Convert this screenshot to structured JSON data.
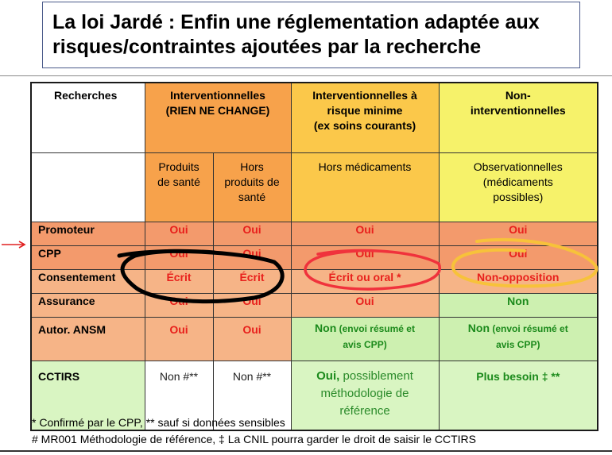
{
  "title": {
    "line1": "La loi Jardé : Enfin une réglementation adaptée aux",
    "line2": "risques/contraintes ajoutées par la recherche"
  },
  "table": {
    "corner": "Recherches",
    "col1_header_l1": "Interventionnelles",
    "col1_header_l2": "(RIEN NE CHANGE)",
    "col1a_l1": "Produits",
    "col1a_l2": "de santé",
    "col1b_l1": "Hors",
    "col1b_l2": "produits de",
    "col1b_l3": "santé",
    "col2_header_l1": "Interventionnelles à",
    "col2_header_l2": "risque minime",
    "col2_header_l3": "(ex soins courants)",
    "col2_sub": "Hors médicaments",
    "col3_header_l1": "Non-",
    "col3_header_l2": "interventionnelles",
    "col3_sub_l1": "Observationnelles",
    "col3_sub_l2": "(médicaments",
    "col3_sub_l3": "possibles)",
    "rows": {
      "promoteur": {
        "label": "Promoteur",
        "c1a": "Oui",
        "c1b": "Oui",
        "c2": "Oui",
        "c3": "Oui"
      },
      "cpp": {
        "label": "CPP",
        "c1a": "Oui",
        "c1b": "Oui",
        "c2": "Oui",
        "c3": "Oui"
      },
      "consentement": {
        "label": "Consentement",
        "c1a": "Écrit",
        "c1b": "Écrit",
        "c2": "Écrit ou oral *",
        "c3": "Non-opposition"
      },
      "assurance": {
        "label": "Assurance",
        "c1a": "Oui",
        "c1b": "Oui",
        "c2": "Oui",
        "c3": "Non"
      },
      "ansm": {
        "label": "Autor. ANSM",
        "c1a": "Oui",
        "c1b": "Oui",
        "c2_main": "Non",
        "c2_note_a": " (envoi résumé et",
        "c2_note_b": "avis CPP)",
        "c3_main": "Non",
        "c3_note_a": " (envoi résumé et",
        "c3_note_b": "avis CPP)"
      },
      "cctirs": {
        "label": "CCTIRS",
        "c1a": "Non #**",
        "c1b": "Non #**",
        "c2_main": "Oui,",
        "c2_rest_a": " possiblement",
        "c2_rest_b": "méthodologie de",
        "c2_rest_c": "référence",
        "c3": "Plus besoin ‡ **"
      }
    }
  },
  "notes": {
    "line1": "* Confirmé par le CPP, ** sauf si données sensibles",
    "line2": "# MR001 Méthodologie de référence, ‡ La CNIL pourra garder le droit de saisir le CCTIRS"
  },
  "colors": {
    "orange": "#f7a24b",
    "yellow": "#f6f26a",
    "salmon": "#f39a6c",
    "green": "#cdf0b0",
    "red_text": "#e8201c",
    "green_text": "#1b8a1b",
    "annotation_black": "#000000",
    "annotation_red": "#f0323c",
    "annotation_yellow": "#f7c23a"
  }
}
